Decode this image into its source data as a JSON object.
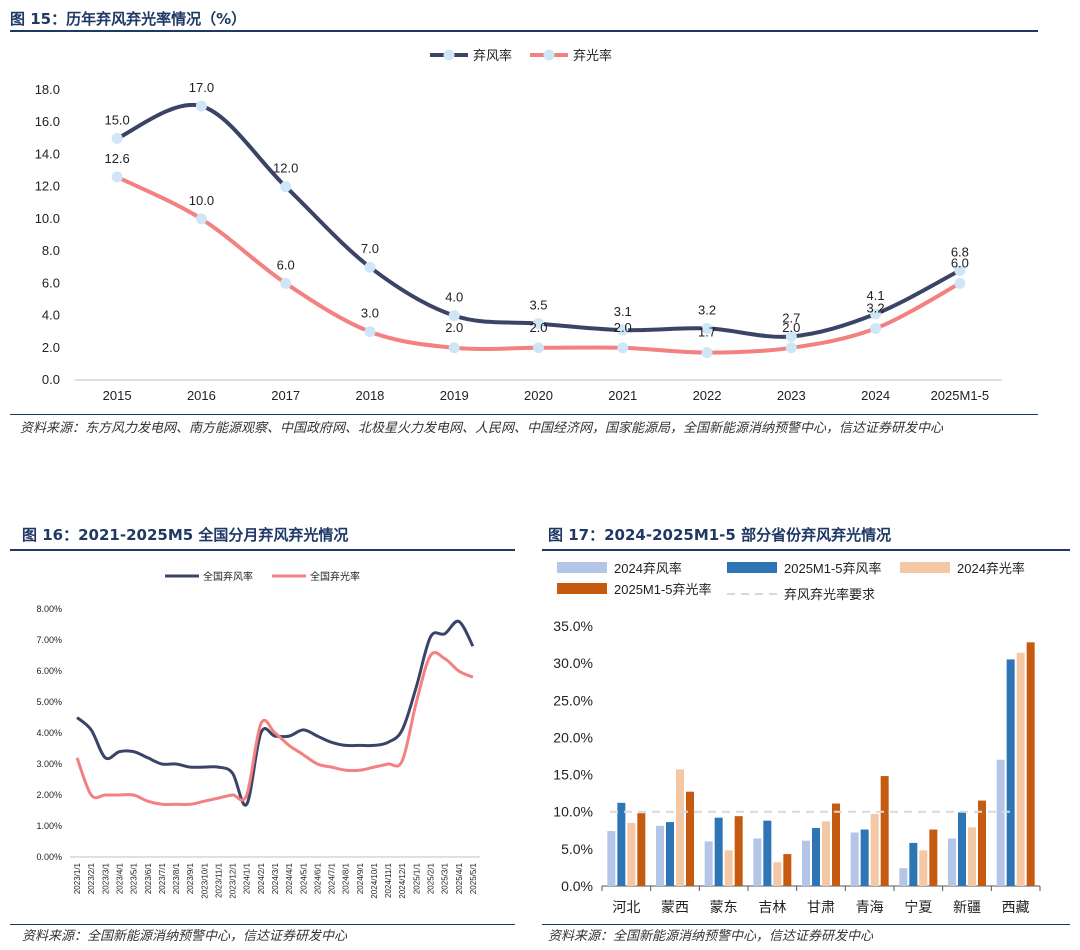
{
  "fig15": {
    "title": "图 15：历年弃风弃光率情况（%）",
    "source": "资料来源：东方风力发电网、南方能源观察、中国政府网、北极星火力发电网、人民网、中国经济网，国家能源局，全国新能源消纳预警中心，信达证券研发中心"
  },
  "fig16": {
    "title": "图 16：2021-2025M5 全国分月弃风弃光情况",
    "source": "资料来源：全国新能源消纳预警中心，信达证券研发中心"
  },
  "fig17": {
    "title": "图 17：2024-2025M1-5 部分省份弃风弃光情况",
    "source": "资料来源：全国新能源消纳预警中心，信达证券研发中心"
  },
  "colors": {
    "wind": "#3b4466",
    "solar": "#f48080",
    "marker": "#cfe6f7",
    "wind2024": "#b3c6e7",
    "wind2025": "#2e75b6",
    "solar2024": "#f4c7a5",
    "solar2025": "#c55a11",
    "requirement": "#d9d9d9"
  },
  "chart_data": [
    {
      "type": "line",
      "categories": [
        "2015",
        "2016",
        "2017",
        "2018",
        "2019",
        "2020",
        "2021",
        "2022",
        "2023",
        "2024",
        "2025M1-5"
      ],
      "series": [
        {
          "name": "弃风率",
          "values": [
            15.0,
            17.0,
            12.0,
            7.0,
            4.0,
            3.5,
            3.1,
            3.2,
            2.7,
            4.1,
            6.8
          ],
          "labels": [
            "15.0",
            "17.0",
            "12.0",
            "7.0",
            "4.0",
            "3.5",
            "3.1",
            "3.2",
            "2.7",
            "4.1",
            "6.8"
          ]
        },
        {
          "name": "弃光率",
          "values": [
            12.6,
            10.0,
            6.0,
            3.0,
            2.0,
            2.0,
            2.0,
            1.7,
            2.0,
            3.2,
            6.0
          ],
          "labels": [
            "12.6",
            "10.0",
            "6.0",
            "3.0",
            "2.0",
            "2.0",
            "2.0",
            "1.7",
            "2.0",
            "3.2",
            "6.0"
          ]
        }
      ],
      "ylim": [
        0,
        18
      ],
      "yticks": [
        "0.0",
        "2.0",
        "4.0",
        "6.0",
        "8.0",
        "10.0",
        "12.0",
        "14.0",
        "16.0",
        "18.0"
      ],
      "legend": "top-center",
      "grid": false
    },
    {
      "type": "line",
      "categories": [
        "2023/1/1",
        "2023/2/1",
        "2023/3/1",
        "2023/4/1",
        "2023/5/1",
        "2023/6/1",
        "2023/7/1",
        "2023/8/1",
        "2023/9/1",
        "2023/10/1",
        "2023/11/1",
        "2023/12/1",
        "2024/1/1",
        "2024/2/1",
        "2024/3/1",
        "2024/4/1",
        "2024/5/1",
        "2024/6/1",
        "2024/7/1",
        "2024/8/1",
        "2024/9/1",
        "2024/10/1",
        "2024/11/1",
        "2024/12/1",
        "2025/1/1",
        "2025/2/1",
        "2025/3/1",
        "2025/4/1",
        "2025/5/1"
      ],
      "series": [
        {
          "name": "全国弃风率",
          "values": [
            4.5,
            4.1,
            3.2,
            3.4,
            3.4,
            3.2,
            3.0,
            3.0,
            2.9,
            2.9,
            2.9,
            2.7,
            1.7,
            4.0,
            3.9,
            3.9,
            4.1,
            3.9,
            3.7,
            3.6,
            3.6,
            3.6,
            3.7,
            4.1,
            5.5,
            7.1,
            7.2,
            7.6,
            6.8
          ]
        },
        {
          "name": "全国弃光率",
          "values": [
            3.2,
            2.0,
            2.0,
            2.0,
            2.0,
            1.8,
            1.7,
            1.7,
            1.7,
            1.8,
            1.9,
            2.0,
            2.0,
            4.3,
            4.0,
            3.6,
            3.3,
            3.0,
            2.9,
            2.8,
            2.8,
            2.9,
            3.0,
            3.1,
            5.0,
            6.5,
            6.4,
            6.0,
            5.8
          ]
        }
      ],
      "ylim": [
        0,
        8
      ],
      "yticks": [
        "0.00%",
        "1.00%",
        "2.00%",
        "3.00%",
        "4.00%",
        "5.00%",
        "6.00%",
        "7.00%",
        "8.00%"
      ],
      "legend": "top-center",
      "grid": false
    },
    {
      "type": "bar",
      "categories": [
        "河北",
        "蒙西",
        "蒙东",
        "吉林",
        "甘肃",
        "青海",
        "宁夏",
        "新疆",
        "西藏"
      ],
      "series": [
        {
          "name": "2024弃风率",
          "values": [
            7.4,
            8.1,
            6.0,
            6.4,
            6.1,
            7.2,
            2.4,
            6.4,
            17.0
          ]
        },
        {
          "name": "2025M1-5弃风率",
          "values": [
            11.2,
            8.6,
            9.2,
            8.8,
            7.8,
            7.6,
            5.8,
            9.9,
            30.5
          ]
        },
        {
          "name": "2024弃光率",
          "values": [
            8.5,
            15.7,
            4.8,
            3.2,
            8.7,
            9.7,
            4.8,
            7.9,
            31.4
          ]
        },
        {
          "name": "2025M1-5弃光率",
          "values": [
            9.8,
            12.7,
            9.4,
            4.3,
            11.1,
            14.8,
            7.6,
            11.5,
            32.8
          ]
        }
      ],
      "requirement": {
        "name": "弃风弃光率要求",
        "value": 10.0
      },
      "ylim": [
        0,
        35
      ],
      "yticks": [
        "0.0%",
        "5.0%",
        "10.0%",
        "15.0%",
        "20.0%",
        "25.0%",
        "30.0%",
        "35.0%"
      ],
      "legend": "top",
      "grid": false
    }
  ]
}
